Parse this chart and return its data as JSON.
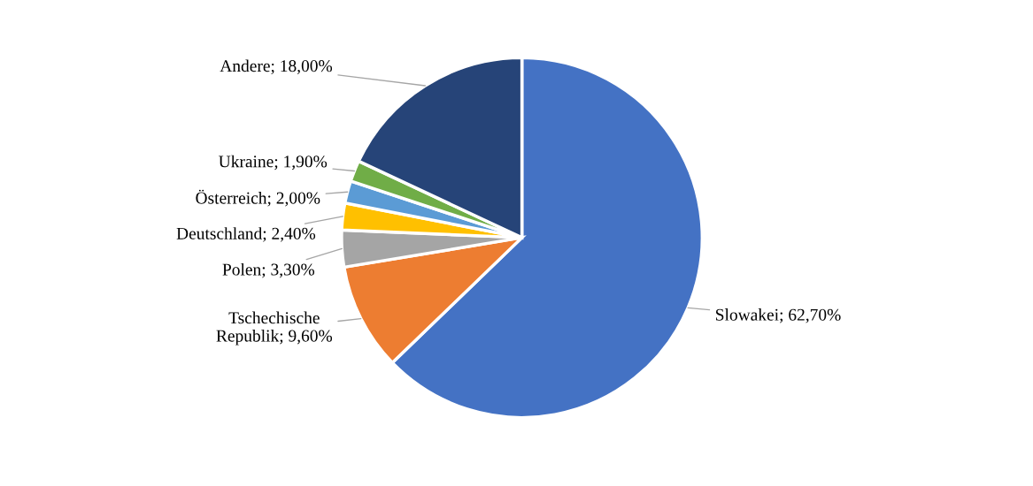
{
  "chart_data": {
    "type": "pie",
    "categories": [
      "Slowakei",
      "Tschechische Republik",
      "Polen",
      "Deutschland",
      "Österreich",
      "Ukraine",
      "Andere"
    ],
    "values": [
      62.7,
      9.6,
      3.3,
      2.4,
      2.0,
      1.9,
      18.0
    ],
    "value_labels": [
      "62,70%",
      "9,60%",
      "3,30%",
      "2,40%",
      "2,00%",
      "1,90%",
      "18,00%"
    ],
    "colors": [
      "#4472c4",
      "#ed7d31",
      "#a5a5a5",
      "#ffc000",
      "#5b9bd5",
      "#70ad47",
      "#264478"
    ],
    "legend": false
  }
}
